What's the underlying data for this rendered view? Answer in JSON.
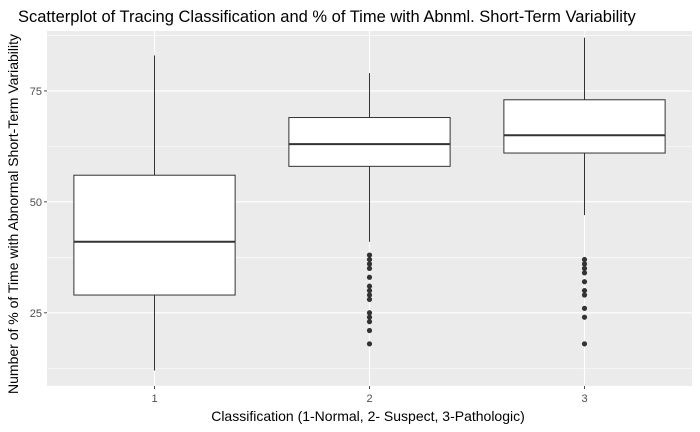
{
  "colors": {
    "panel": "#ebebeb",
    "grid": "#ffffff",
    "box_fill": "#ffffff",
    "box_line": "#333333",
    "outlier": "#333333",
    "tick": "#4d4d4d"
  },
  "chart_data": {
    "type": "boxplot",
    "title": "Scatterplot of Tracing Classification and % of Time with Abnml. Short-Term Variability",
    "xlabel": "Classification (1-Normal, 2- Suspect, 3-Pathologic)",
    "ylabel": "Number of % of Time with Abnormal Short-Term Variability",
    "categories": [
      "1",
      "2",
      "3"
    ],
    "y_ticks": [
      25,
      50,
      75
    ],
    "ylim": [
      8.5,
      88.5
    ],
    "grid": true,
    "boxes": [
      {
        "category": "1",
        "min": 12,
        "q1": 29,
        "median": 41,
        "q3": 56,
        "max": 83,
        "outliers": []
      },
      {
        "category": "2",
        "min": 41,
        "q1": 58,
        "median": 63,
        "q3": 69,
        "max": 79,
        "outliers": [
          38,
          37,
          36,
          35,
          33,
          31,
          30,
          29,
          28,
          25,
          24,
          23,
          21,
          18
        ]
      },
      {
        "category": "3",
        "min": 47,
        "q1": 61,
        "median": 65,
        "q3": 73,
        "max": 87,
        "outliers": [
          37,
          36,
          35,
          34,
          32,
          30,
          29,
          26,
          24,
          18
        ]
      }
    ]
  }
}
